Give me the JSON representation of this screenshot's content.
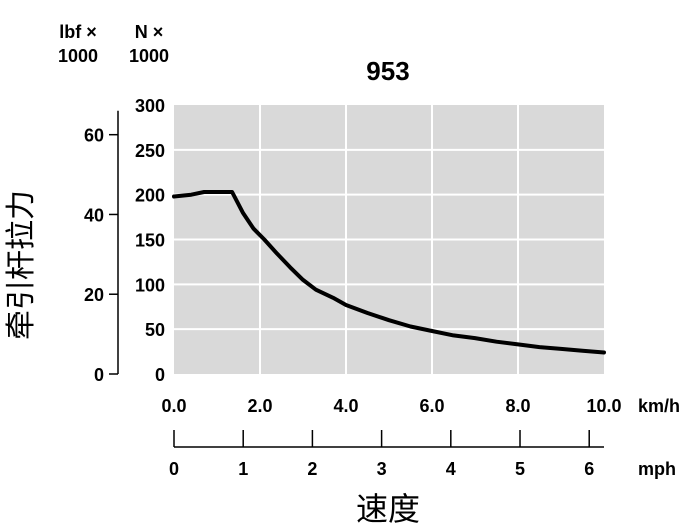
{
  "chart_data": {
    "type": "line",
    "title": "953",
    "ylabel": "牵引杆拉力",
    "xlabel": "速度",
    "x_axis": {
      "unit": "km/h",
      "range": [
        0,
        10
      ],
      "ticks": [
        "0.0",
        "2.0",
        "4.0",
        "6.0",
        "8.0",
        "10.0"
      ],
      "tick_values": [
        0,
        2,
        4,
        6,
        8,
        10
      ],
      "grid": true
    },
    "x2_axis": {
      "unit": "mph",
      "ticks": [
        "0",
        "1",
        "2",
        "3",
        "4",
        "5",
        "6"
      ],
      "tick_values": [
        0,
        1,
        2,
        3,
        4,
        5,
        6
      ]
    },
    "y_axis": {
      "unit_lines": [
        "N ×",
        "1000"
      ],
      "range": [
        0,
        300
      ],
      "ticks": [
        "0",
        "50",
        "100",
        "150",
        "200",
        "250",
        "300"
      ],
      "tick_values": [
        0,
        50,
        100,
        150,
        200,
        250,
        300
      ],
      "grid": true
    },
    "y2_axis": {
      "unit_lines": [
        "lbf ×",
        "1000"
      ],
      "ticks": [
        "0",
        "20",
        "40",
        "60"
      ],
      "tick_values": [
        0,
        20,
        40,
        60
      ]
    },
    "plot_background": "#d9d9d9",
    "grid_color": "#ffffff",
    "line_color": "#000000",
    "series": [
      {
        "x": [
          0,
          0.4,
          0.7,
          1.0,
          1.35,
          1.6,
          1.85,
          2.1,
          2.4,
          2.7,
          3.0,
          3.3,
          3.7,
          4.0,
          4.5,
          5.0,
          5.5,
          6.0,
          6.5,
          7.0,
          7.5,
          8.0,
          8.5,
          9.0,
          9.5,
          10.0
        ],
        "values": [
          198,
          200,
          203,
          203,
          203,
          180,
          162,
          150,
          134,
          119,
          105,
          94,
          85,
          77,
          68,
          60,
          53,
          48,
          43,
          40,
          36,
          33,
          30,
          28,
          26,
          24
        ]
      }
    ]
  }
}
